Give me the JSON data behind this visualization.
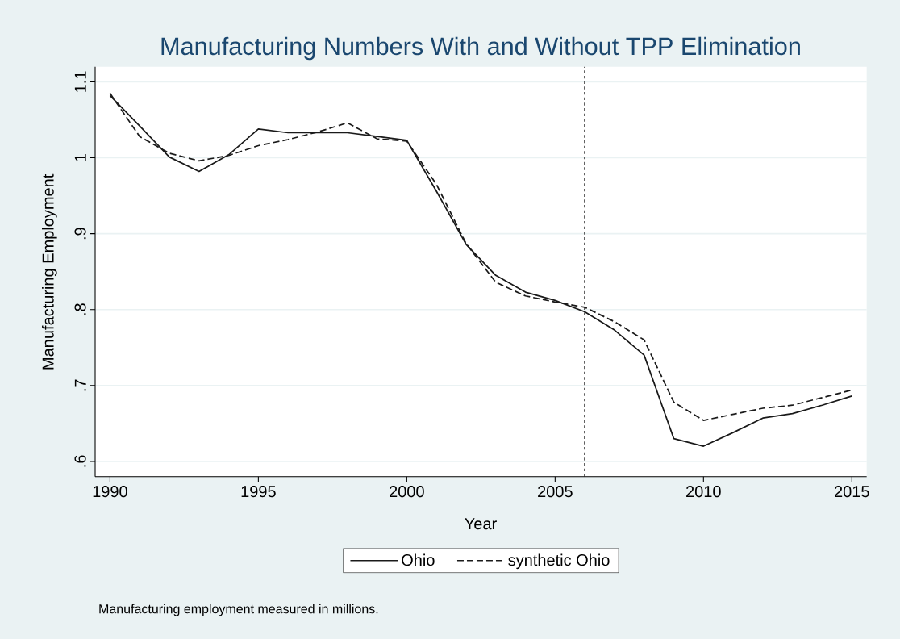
{
  "chart_data": {
    "type": "line",
    "title": "Manufacturing Numbers With and Without TPP Elimination",
    "xlabel": "Year",
    "ylabel": "Manufacturing Employment",
    "annotations": [
      "Manufacturing employment measured in millions."
    ],
    "x": [
      1990,
      1991,
      1992,
      1993,
      1994,
      1995,
      1996,
      1997,
      1998,
      1999,
      2000,
      2001,
      2002,
      2003,
      2004,
      2005,
      2006,
      2007,
      2008,
      2009,
      2010,
      2011,
      2012,
      2013,
      2014,
      2015
    ],
    "series": [
      {
        "name": "Ohio",
        "color": "#1a1a1a",
        "line_style": "solid",
        "values": [
          1.082,
          1.042,
          1.001,
          0.982,
          1.004,
          1.038,
          1.033,
          1.033,
          1.033,
          1.028,
          1.023,
          0.956,
          0.886,
          0.845,
          0.823,
          0.812,
          0.797,
          0.773,
          0.74,
          0.63,
          0.62,
          0.638,
          0.657,
          0.663,
          0.674,
          0.686
        ]
      },
      {
        "name": "synthetic Ohio",
        "color": "#1a1a1a",
        "line_style": "dashed",
        "values": [
          1.085,
          1.028,
          1.006,
          0.996,
          1.003,
          1.016,
          1.024,
          1.034,
          1.046,
          1.025,
          1.022,
          0.965,
          0.887,
          0.836,
          0.818,
          0.81,
          0.803,
          0.784,
          0.76,
          0.678,
          0.654,
          0.662,
          0.67,
          0.674,
          0.684,
          0.694
        ]
      }
    ],
    "xlim": [
      1989.5,
      2015.5
    ],
    "ylim": [
      0.58,
      1.12
    ],
    "xticks": [
      1990,
      1995,
      2000,
      2005,
      2010,
      2015
    ],
    "yticks": [
      {
        "value": 0.6,
        "label": ".6"
      },
      {
        "value": 0.7,
        "label": ".7"
      },
      {
        "value": 0.8,
        "label": ".8"
      },
      {
        "value": 0.9,
        "label": ".9"
      },
      {
        "value": 1,
        "label": "1"
      },
      {
        "value": 1.1,
        "label": "1.1"
      }
    ],
    "ref_lines": [
      {
        "axis": "x",
        "value": 2006,
        "color": "#1a1a1a",
        "line_style": "dotted"
      }
    ],
    "grid": "y",
    "legend": "bottom",
    "marker": "none"
  }
}
